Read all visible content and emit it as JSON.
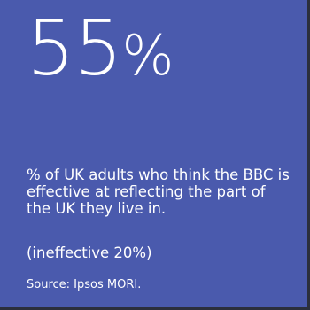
{
  "stat": {
    "number": "55",
    "unit": "%"
  },
  "description": "% of UK adults who think the BBC is effective at reflecting the part of the UK they live in.",
  "ineffective_note": "(ineffective 20%)",
  "source": "Source: Ipsos MORI.",
  "colors": {
    "background": "#4a5aad",
    "text": "#ffffff",
    "edge": "#2b2f3d"
  }
}
